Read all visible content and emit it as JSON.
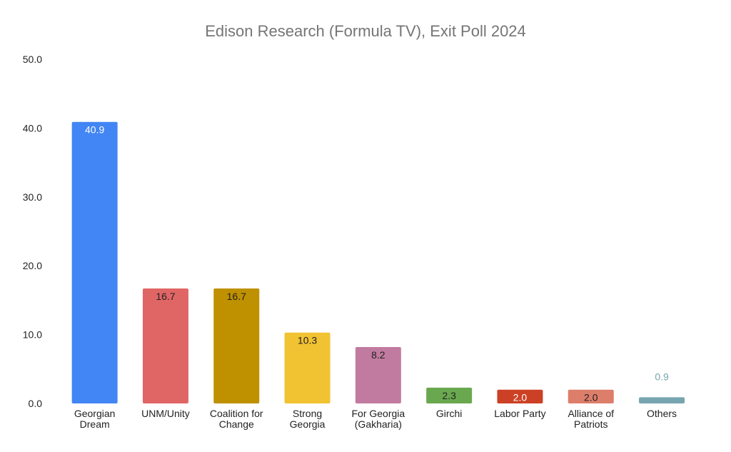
{
  "chart_data": {
    "type": "bar",
    "title": "Edison Research (Formula TV), Exit Poll 2024",
    "xlabel": "",
    "ylabel": "",
    "ylim": [
      0,
      50
    ],
    "yticks": [
      "0.0",
      "10.0",
      "20.0",
      "30.0",
      "40.0",
      "50.0"
    ],
    "grid": false,
    "legend": "none",
    "categories": [
      [
        "Georgian",
        "Dream"
      ],
      [
        "UNM/Unity"
      ],
      [
        "Coalition for",
        "Change"
      ],
      [
        "Strong",
        "Georgia"
      ],
      [
        "For Georgia",
        "(Gakharia)"
      ],
      [
        "Girchi"
      ],
      [
        "Labor Party"
      ],
      [
        "Alliance of",
        "Patriots"
      ],
      [
        "Others"
      ]
    ],
    "values": [
      40.9,
      16.7,
      16.7,
      10.3,
      8.2,
      2.3,
      2.0,
      2.0,
      0.9
    ],
    "data_labels": [
      "40.9",
      "16.7",
      "16.7",
      "10.3",
      "8.2",
      "2.3",
      "2.0",
      "2.0",
      "0.9"
    ],
    "colors": [
      "#4285f4",
      "#e06666",
      "#bf9000",
      "#f1c232",
      "#c27ba0",
      "#6aa84f",
      "#cc4125",
      "#dd7e6b",
      "#76a5af"
    ],
    "label_colors": [
      "#ffffff",
      "#222222",
      "#222222",
      "#222222",
      "#222222",
      "#222222",
      "#ffffff",
      "#222222",
      "#76a5af"
    ]
  }
}
